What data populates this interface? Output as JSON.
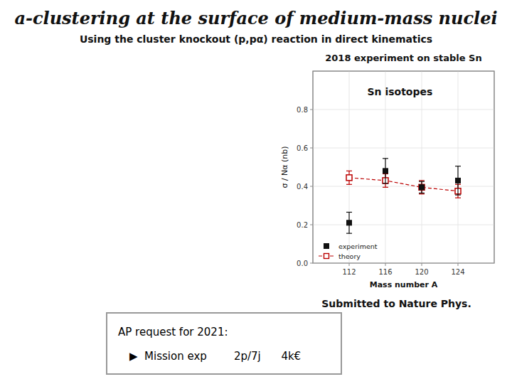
{
  "chart_data": {
    "type": "scatter",
    "title": "a-clustering at the surface of medium-mass nuclei",
    "subtitle": "Using the cluster knockout (p,pα) reaction in direct kinematics",
    "annotations": [
      "2018 experiment on stable Sn",
      "Sn isotopes",
      "Submitted to Nature Phys.",
      "AP request for 2021:",
      "▶  Mission exp        2p/7j      4k€"
    ],
    "x_label": "Mass number A",
    "y_label": "σ / Nα (nb)",
    "xlim": [
      108,
      128
    ],
    "ylim": [
      0.0,
      1.0
    ],
    "xticks": [
      112,
      116,
      120,
      124
    ],
    "yticks": [
      {
        "value": 0.0,
        "label": "0.0"
      },
      0.2,
      0.4,
      0.6,
      0.8
    ],
    "legend": "lower left",
    "series": [
      {
        "name": "experiment",
        "color": "#111111",
        "marker": "square",
        "line_style": "none",
        "x": [
          112,
          116,
          120,
          124
        ],
        "values": [
          0.21,
          0.48,
          0.395,
          0.43
        ],
        "errors": [
          0.055,
          0.065,
          0.03,
          0.075
        ]
      },
      {
        "name": "theory",
        "color": "#bb0000",
        "marker": "square-open",
        "line_style": "dashed",
        "x": [
          112,
          116,
          120,
          124
        ],
        "values": [
          0.445,
          0.43,
          0.395,
          0.375
        ],
        "errors": [
          0.035,
          0.035,
          0.035,
          0.035
        ]
      }
    ]
  }
}
